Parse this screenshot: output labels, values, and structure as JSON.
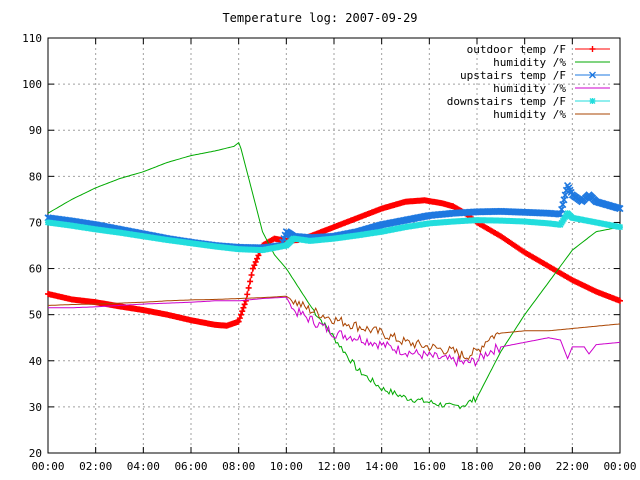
{
  "chart_data": {
    "type": "line",
    "title": "Temperature log: 2007-09-29",
    "xlabel": "",
    "ylabel": "",
    "x_ticks": [
      "00:00",
      "02:00",
      "04:00",
      "06:00",
      "08:00",
      "10:00",
      "12:00",
      "14:00",
      "16:00",
      "18:00",
      "20:00",
      "22:00",
      "00:00"
    ],
    "y_ticks": [
      20,
      30,
      40,
      50,
      60,
      70,
      80,
      90,
      100,
      110
    ],
    "xlim_hours": [
      0,
      24
    ],
    "ylim": [
      20,
      110
    ],
    "grid": true,
    "legend_position": "top-right",
    "series": [
      {
        "name": "outdoor temp /F",
        "color": "#ff0000",
        "marker": "plus",
        "points": [
          [
            0,
            54.5
          ],
          [
            1,
            53.3
          ],
          [
            2,
            52.7
          ],
          [
            3,
            51.8
          ],
          [
            4,
            51.0
          ],
          [
            5,
            50.0
          ],
          [
            6,
            48.8
          ],
          [
            7,
            47.8
          ],
          [
            7.5,
            47.6
          ],
          [
            8,
            48.5
          ],
          [
            8.3,
            53
          ],
          [
            8.6,
            60
          ],
          [
            9,
            65
          ],
          [
            9.5,
            66.5
          ],
          [
            10,
            66
          ],
          [
            10.5,
            66.2
          ],
          [
            11,
            67
          ],
          [
            11.5,
            68
          ],
          [
            12,
            69
          ],
          [
            13,
            71
          ],
          [
            14,
            73
          ],
          [
            15,
            74.5
          ],
          [
            15.8,
            74.8
          ],
          [
            16.5,
            74.2
          ],
          [
            17,
            73.5
          ],
          [
            17.5,
            72
          ],
          [
            18,
            70
          ],
          [
            19,
            67
          ],
          [
            20,
            63.5
          ],
          [
            21,
            60.5
          ],
          [
            22,
            57.5
          ],
          [
            23,
            55
          ],
          [
            24,
            53
          ]
        ]
      },
      {
        "name": "humidity /%",
        "color": "#00aa00",
        "marker": "none",
        "points": [
          [
            0,
            72
          ],
          [
            1,
            75
          ],
          [
            2,
            77.5
          ],
          [
            3,
            79.5
          ],
          [
            4,
            81
          ],
          [
            5,
            83
          ],
          [
            6,
            84.5
          ],
          [
            7,
            85.5
          ],
          [
            7.8,
            86.5
          ],
          [
            8,
            87.3
          ],
          [
            8.1,
            86
          ],
          [
            8.5,
            78
          ],
          [
            9,
            68
          ],
          [
            9.5,
            63
          ],
          [
            10,
            60
          ],
          [
            11,
            52
          ],
          [
            12,
            45
          ],
          [
            13,
            38
          ],
          [
            14,
            34
          ],
          [
            15,
            32
          ],
          [
            16,
            31
          ],
          [
            17,
            30
          ],
          [
            17.5,
            30.5
          ],
          [
            18,
            32
          ],
          [
            19,
            42
          ],
          [
            20,
            50
          ],
          [
            21,
            57
          ],
          [
            22,
            64
          ],
          [
            23,
            68
          ],
          [
            24,
            69
          ]
        ]
      },
      {
        "name": "upstairs temp /F",
        "color": "#1e78e0",
        "marker": "cross",
        "points": [
          [
            0,
            71
          ],
          [
            1,
            70.3
          ],
          [
            2,
            69.5
          ],
          [
            3,
            68.5
          ],
          [
            4,
            67.5
          ],
          [
            5,
            66.5
          ],
          [
            6,
            65.7
          ],
          [
            7,
            65
          ],
          [
            8,
            64.6
          ],
          [
            9,
            64.5
          ],
          [
            9.8,
            65
          ],
          [
            10,
            68
          ],
          [
            10.3,
            67
          ],
          [
            11,
            66.7
          ],
          [
            12,
            67
          ],
          [
            13,
            68
          ],
          [
            14,
            69.5
          ],
          [
            15,
            70.5
          ],
          [
            16,
            71.5
          ],
          [
            17,
            72
          ],
          [
            18,
            72.3
          ],
          [
            19,
            72.4
          ],
          [
            20,
            72.2
          ],
          [
            21,
            72
          ],
          [
            21.5,
            71.8
          ],
          [
            21.8,
            78
          ],
          [
            22,
            76
          ],
          [
            22.4,
            74.5
          ],
          [
            22.7,
            76
          ],
          [
            23,
            74.5
          ],
          [
            24,
            73
          ]
        ]
      },
      {
        "name": "humidity /%",
        "color": "#cc00cc",
        "marker": "none",
        "points": [
          [
            0,
            51.5
          ],
          [
            1,
            51.5
          ],
          [
            2,
            51.7
          ],
          [
            3,
            52
          ],
          [
            4,
            52.3
          ],
          [
            5,
            52.5
          ],
          [
            6,
            52.7
          ],
          [
            7,
            53
          ],
          [
            8,
            53
          ],
          [
            9,
            53.5
          ],
          [
            10,
            53.8
          ],
          [
            10.3,
            51
          ],
          [
            11,
            49
          ],
          [
            12,
            46
          ],
          [
            13,
            45
          ],
          [
            14,
            43.5
          ],
          [
            15,
            42
          ],
          [
            16,
            41
          ],
          [
            17,
            40
          ],
          [
            17.5,
            39.5
          ],
          [
            18,
            40
          ],
          [
            18.5,
            42
          ],
          [
            19,
            43
          ],
          [
            20,
            44
          ],
          [
            21,
            45
          ],
          [
            21.5,
            44.5
          ],
          [
            21.8,
            40.5
          ],
          [
            22,
            43
          ],
          [
            22.5,
            43
          ],
          [
            22.7,
            41.5
          ],
          [
            23,
            43.5
          ],
          [
            24,
            44
          ]
        ]
      },
      {
        "name": "downstairs temp /F",
        "color": "#22dddd",
        "marker": "star",
        "points": [
          [
            0,
            70
          ],
          [
            1,
            69.3
          ],
          [
            2,
            68.5
          ],
          [
            3,
            67.8
          ],
          [
            4,
            67
          ],
          [
            5,
            66.2
          ],
          [
            6,
            65.5
          ],
          [
            7,
            64.8
          ],
          [
            8,
            64.2
          ],
          [
            9,
            64
          ],
          [
            10,
            65
          ],
          [
            10.3,
            66.5
          ],
          [
            11,
            66
          ],
          [
            12,
            66.5
          ],
          [
            13,
            67.2
          ],
          [
            14,
            68
          ],
          [
            15,
            69
          ],
          [
            16,
            69.8
          ],
          [
            17,
            70.2
          ],
          [
            18,
            70.5
          ],
          [
            19,
            70.4
          ],
          [
            20,
            70.2
          ],
          [
            21,
            69.8
          ],
          [
            21.5,
            69.5
          ],
          [
            21.8,
            72
          ],
          [
            22,
            71
          ],
          [
            22.5,
            70.5
          ],
          [
            23,
            70
          ],
          [
            24,
            69
          ]
        ]
      },
      {
        "name": "humidity /%",
        "color": "#aa4400",
        "marker": "none",
        "points": [
          [
            0,
            52
          ],
          [
            1,
            52.2
          ],
          [
            2,
            52.3
          ],
          [
            3,
            52.5
          ],
          [
            4,
            52.7
          ],
          [
            5,
            53
          ],
          [
            6,
            53.2
          ],
          [
            7,
            53.3
          ],
          [
            8,
            53.5
          ],
          [
            9,
            53.7
          ],
          [
            10,
            54
          ],
          [
            10.3,
            53
          ],
          [
            11,
            51
          ],
          [
            12,
            49
          ],
          [
            13,
            47.5
          ],
          [
            14,
            46
          ],
          [
            15,
            44
          ],
          [
            16,
            43
          ],
          [
            17,
            42
          ],
          [
            17.5,
            41
          ],
          [
            18,
            42
          ],
          [
            18.5,
            45
          ],
          [
            19,
            46
          ],
          [
            20,
            46.5
          ],
          [
            21,
            46.5
          ],
          [
            22,
            47
          ],
          [
            23,
            47.5
          ],
          [
            24,
            48
          ]
        ]
      }
    ]
  }
}
